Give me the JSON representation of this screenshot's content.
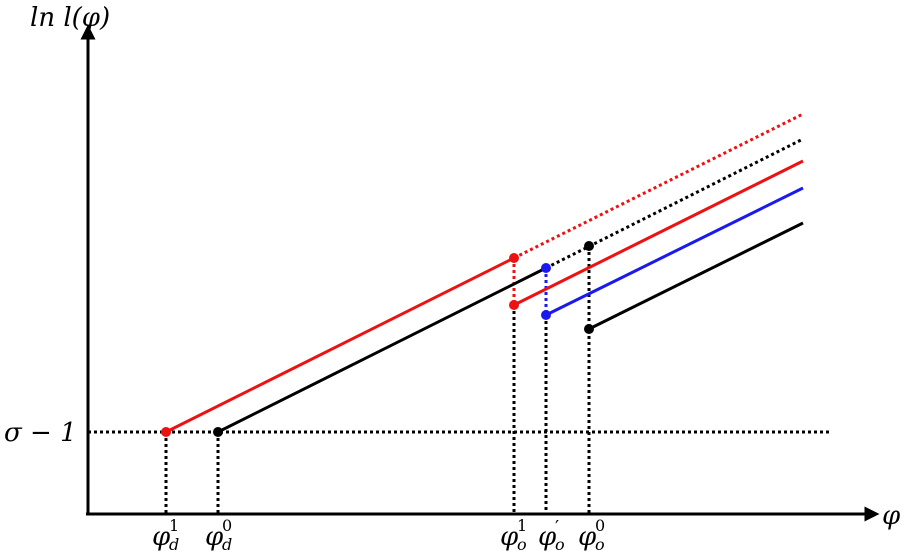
{
  "y_axis_label": "ln l(φ)",
  "x_axis_label": "φ",
  "horizontal_label": "σ − 1",
  "x_ticks": [
    {
      "id": "phi-d-1",
      "base": "φ",
      "sub": "d",
      "sup": "1"
    },
    {
      "id": "phi-d-0",
      "base": "φ",
      "sub": "d",
      "sup": "0"
    },
    {
      "id": "phi-o-1",
      "base": "φ",
      "sub": "o",
      "sup": "1"
    },
    {
      "id": "phi-o-prime",
      "base": "φ",
      "sub": "o",
      "sup": "′"
    },
    {
      "id": "phi-o-0",
      "base": "φ",
      "sub": "o",
      "sup": "0"
    }
  ],
  "colors": {
    "red": "#ee1111",
    "black": "#000000",
    "blue": "#1a1aee"
  }
}
